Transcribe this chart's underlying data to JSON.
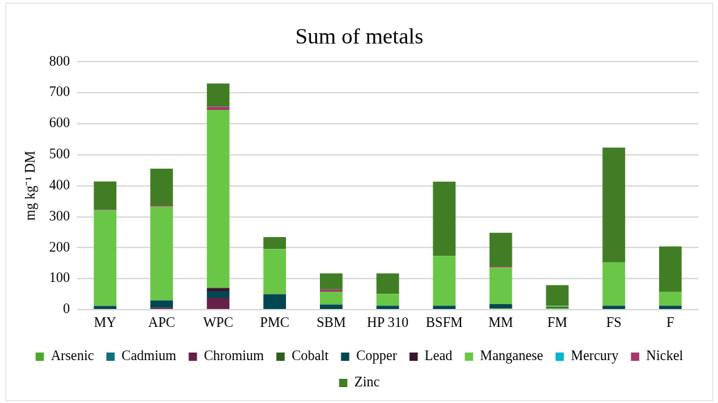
{
  "chart_data": {
    "type": "bar",
    "title": "Sum of metals",
    "ylabel": "mg kg⁻¹ DM",
    "stacked": true,
    "grid": "y",
    "legend": "bottom",
    "categories": [
      "MY",
      "APC",
      "WPC",
      "PMC",
      "SBM",
      "HP 310",
      "BSFM",
      "MM",
      "FM",
      "FS",
      "F"
    ],
    "ylim": [
      0,
      800
    ],
    "yticks": [
      0,
      100,
      200,
      300,
      400,
      500,
      600,
      700,
      800
    ],
    "series": [
      {
        "name": "Arsenic",
        "color": "#4ea72e",
        "values": [
          0,
          0,
          0,
          2,
          0,
          0,
          0,
          4,
          6,
          0,
          0
        ]
      },
      {
        "name": "Cadmium",
        "color": "#0f7081",
        "values": [
          0,
          0,
          0,
          0,
          0,
          0,
          0,
          0,
          null,
          0,
          0
        ]
      },
      {
        "name": "Chromium",
        "color": "#652148",
        "values": [
          0,
          6,
          38,
          0,
          0,
          0,
          0,
          0,
          0,
          0,
          0
        ]
      },
      {
        "name": "Cobalt",
        "color": "#2e5e1c",
        "values": [
          0,
          0,
          0,
          0,
          0,
          0,
          0,
          0,
          0,
          0,
          0
        ]
      },
      {
        "name": "Copper",
        "color": "#024750",
        "values": [
          12,
          24,
          22,
          48,
          17,
          13,
          13,
          14,
          3,
          13,
          13
        ]
      },
      {
        "name": "Lead",
        "color": "#3d1530",
        "values": [
          0,
          0,
          10,
          0,
          0,
          0,
          0,
          0,
          0,
          0,
          0
        ]
      },
      {
        "name": "Manganese",
        "color": "#6ac646",
        "values": [
          308,
          303,
          575,
          146,
          41,
          38,
          160,
          117,
          3,
          139,
          45
        ]
      },
      {
        "name": "Mercury",
        "color": "#00b4cc",
        "values": [
          0,
          0,
          0,
          0,
          0,
          0,
          0,
          0,
          null,
          0,
          0
        ]
      },
      {
        "name": "Nickel",
        "color": "#a2386c",
        "values": [
          2,
          4,
          10,
          0,
          7,
          0,
          0,
          3,
          0,
          0,
          0
        ]
      },
      {
        "name": "Zinc",
        "color": "#417d25",
        "values": [
          92,
          118,
          75,
          38,
          52,
          66,
          240,
          110,
          67,
          371,
          146
        ]
      }
    ]
  }
}
